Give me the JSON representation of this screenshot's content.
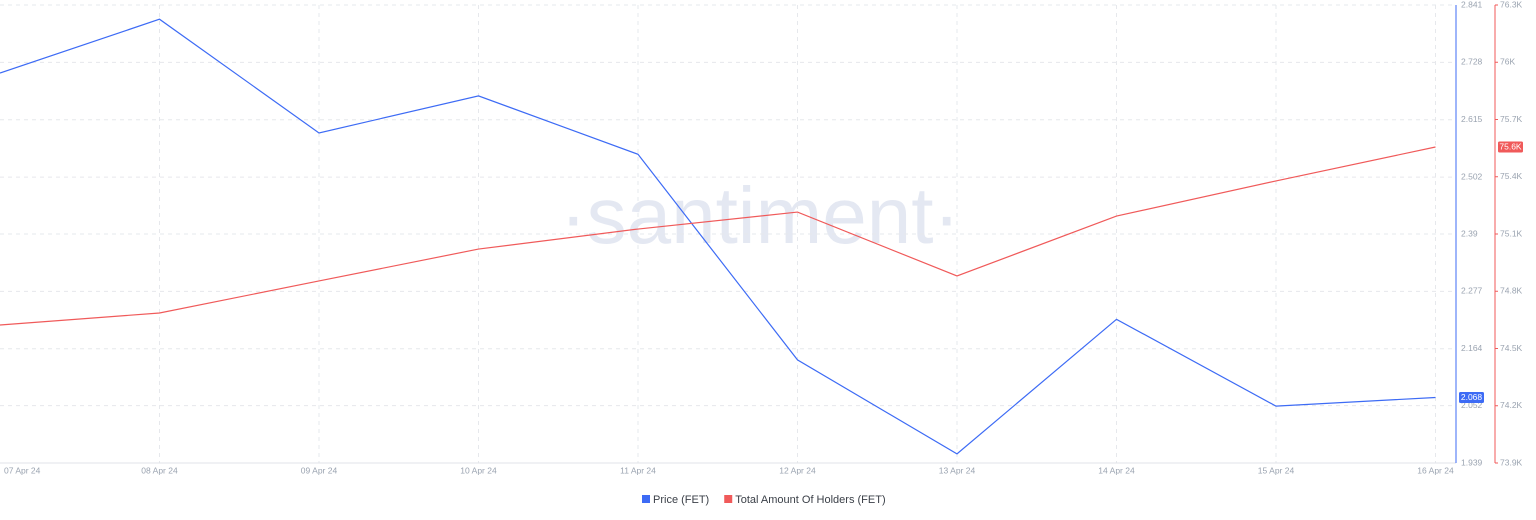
{
  "chart_data": {
    "type": "line",
    "watermark": "·santiment·",
    "categories": [
      "07 Apr 24",
      "08 Apr 24",
      "09 Apr 24",
      "10 Apr 24",
      "11 Apr 24",
      "12 Apr 24",
      "13 Apr 24",
      "14 Apr 24",
      "15 Apr 24",
      "16 Apr 24"
    ],
    "series": [
      {
        "name": "Price (FET)",
        "color": "#3d6bf5",
        "axis": "y",
        "values": [
          2.707,
          2.813,
          2.589,
          2.662,
          2.547,
          2.142,
          1.957,
          2.222,
          2.051,
          2.068
        ],
        "value_labels": [
          null,
          null,
          null,
          null,
          null,
          null,
          null,
          null,
          null,
          "2.068"
        ]
      },
      {
        "name": "Total Amount Of Holders (FET)",
        "color": "#f05a5a",
        "axis": "y2",
        "values": [
          74623,
          74686,
          74854,
          75021,
          75126,
          75215,
          74880,
          75194,
          75378,
          75556
        ],
        "value_labels": [
          null,
          null,
          null,
          null,
          null,
          null,
          null,
          null,
          null,
          "75.6K"
        ]
      }
    ],
    "ylim": [
      1.939,
      2.841
    ],
    "yticks": [
      1.939,
      2.052,
      2.164,
      2.277,
      2.39,
      2.502,
      2.615,
      2.728,
      2.841
    ],
    "y2lim": [
      73900,
      76300
    ],
    "y2ticks": [
      {
        "value": 73900,
        "label": "73.9K"
      },
      {
        "value": 74200,
        "label": "74.2K"
      },
      {
        "value": 74500,
        "label": "74.5K"
      },
      {
        "value": 74800,
        "label": "74.8K"
      },
      {
        "value": 75100,
        "label": "75.1K"
      },
      {
        "value": 75400,
        "label": "75.4K"
      },
      {
        "value": 75700,
        "label": "75.7K"
      },
      {
        "value": 76000,
        "label": "76K"
      },
      {
        "value": 76300,
        "label": "76.3K"
      }
    ],
    "grid": true
  }
}
